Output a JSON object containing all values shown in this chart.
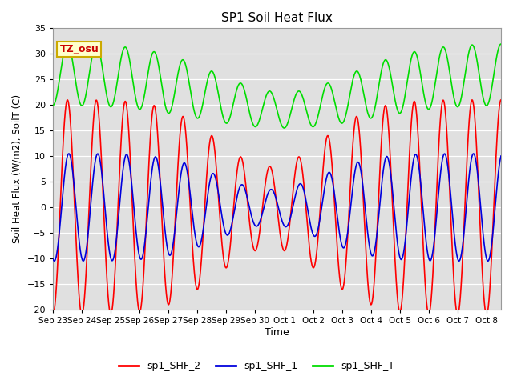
{
  "title": "SP1 Soil Heat Flux",
  "xlabel": "Time",
  "ylabel": "Soil Heat Flux (W/m2), SoilT (C)",
  "ylim": [
    -20,
    35
  ],
  "yticks": [
    -20,
    -15,
    -10,
    -5,
    0,
    5,
    10,
    15,
    20,
    25,
    30,
    35
  ],
  "x_tick_labels": [
    "Sep 23",
    "Sep 24",
    "Sep 25",
    "Sep 26",
    "Sep 27",
    "Sep 28",
    "Sep 29",
    "Sep 30",
    "Oct 1",
    "Oct 2",
    "Oct 3",
    "Oct 4",
    "Oct 5",
    "Oct 6",
    "Oct 7",
    "Oct 8"
  ],
  "fig_bg_color": "#ffffff",
  "plot_bg_color": "#e0e0e0",
  "grid_color": "#ffffff",
  "line_colors": {
    "sp1_SHF_2": "#ff0000",
    "sp1_SHF_1": "#0000dd",
    "sp1_SHF_T": "#00dd00"
  },
  "legend_labels": [
    "sp1_SHF_2",
    "sp1_SHF_1",
    "sp1_SHF_T"
  ],
  "annotation_text": "TZ_osu",
  "annotation_color": "#cc0000",
  "annotation_box_color": "#ffffcc",
  "annotation_box_edge": "#ccaa00"
}
